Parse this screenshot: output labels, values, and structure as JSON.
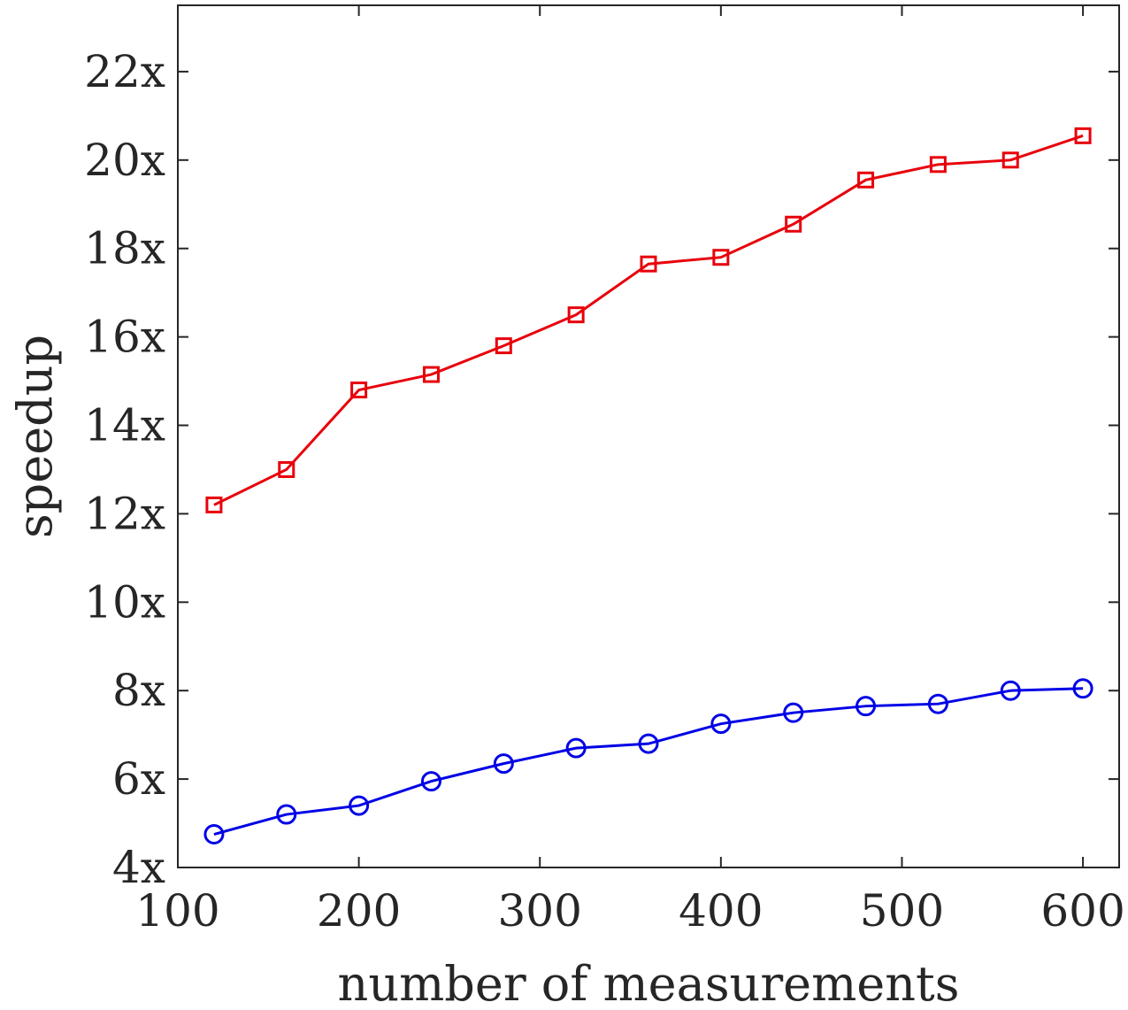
{
  "chart_data": {
    "type": "line",
    "xlabel": "number of measurements",
    "ylabel": "speedup",
    "xlim": [
      100,
      620
    ],
    "ylim": [
      4,
      23.5
    ],
    "x_ticks": [
      100,
      200,
      300,
      400,
      500,
      600
    ],
    "x_tick_labels": [
      "100",
      "200",
      "300",
      "400",
      "500",
      "600"
    ],
    "y_ticks": [
      4,
      6,
      8,
      10,
      12,
      14,
      16,
      18,
      20,
      22
    ],
    "y_tick_labels": [
      "4x",
      "6x",
      "8x",
      "10x",
      "12x",
      "14x",
      "16x",
      "18x",
      "20x",
      "22x"
    ],
    "grid": false,
    "x": [
      120,
      160,
      200,
      240,
      280,
      320,
      360,
      400,
      440,
      480,
      520,
      560,
      600
    ],
    "series": [
      {
        "color": "#e8000b",
        "marker": "square",
        "values": [
          12.2,
          13.0,
          14.8,
          15.15,
          15.8,
          16.5,
          17.65,
          17.8,
          18.55,
          19.55,
          19.9,
          20.0,
          20.55
        ]
      },
      {
        "color": "#0000e6",
        "marker": "circle",
        "values": [
          4.75,
          5.2,
          5.4,
          5.95,
          6.35,
          6.7,
          6.8,
          7.25,
          7.5,
          7.65,
          7.7,
          8.0,
          8.05
        ]
      }
    ]
  }
}
